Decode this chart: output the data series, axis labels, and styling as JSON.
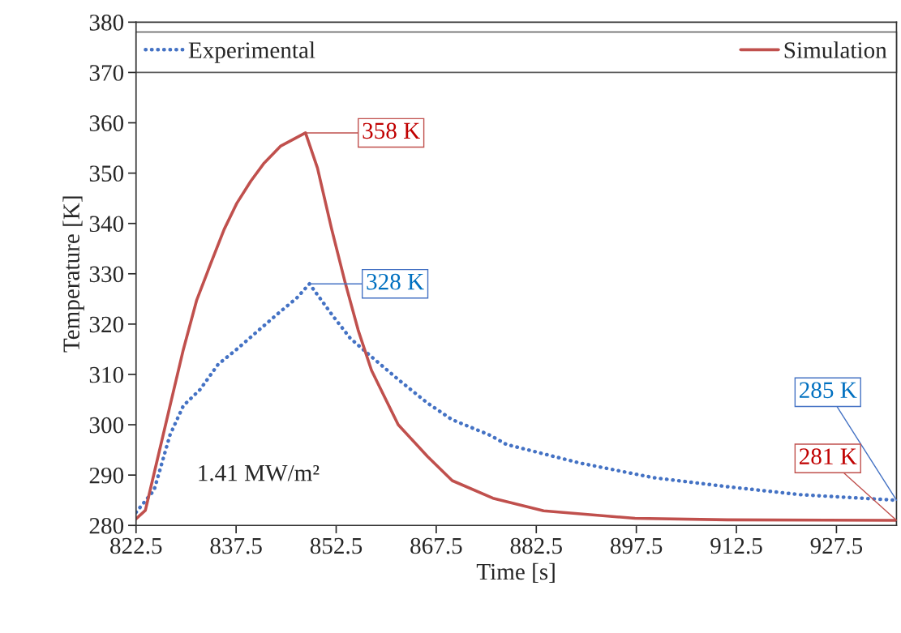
{
  "chart_data": {
    "type": "line",
    "xlabel": "Time [s]",
    "ylabel": "Temperature [K]",
    "xlim": [
      822.5,
      936.5
    ],
    "xticks": [
      822.5,
      837.5,
      852.5,
      867.5,
      882.5,
      897.5,
      912.5,
      927.5
    ],
    "ylim": [
      280,
      380
    ],
    "yticks": [
      280,
      290,
      300,
      310,
      320,
      330,
      340,
      350,
      360,
      370,
      380
    ],
    "grid": false,
    "legend": "top",
    "series": [
      {
        "name": "Experimental",
        "color": "#4472c4",
        "line_style": "dotted",
        "x": [
          822.5,
          825.2,
          827.6,
          829.6,
          832.1,
          834.8,
          837.6,
          840.9,
          843.7,
          846.6,
          848.5,
          851.8,
          854.6,
          857.8,
          861.8,
          866.2,
          869.9,
          875.6,
          878,
          889,
          900,
          911.1,
          922.1,
          936.5
        ],
        "values": [
          282.6,
          287,
          298,
          303.8,
          307,
          312,
          315,
          318.8,
          322,
          325.2,
          328,
          322,
          317.2,
          313.5,
          309,
          304.3,
          301,
          297.9,
          296.1,
          292.4,
          289.5,
          287.7,
          286.1,
          285
        ]
      },
      {
        "name": "Simulation",
        "color": "#c0504d",
        "line_style": "solid",
        "x": [
          822.5,
          823.9,
          825.5,
          827.6,
          829.6,
          831.6,
          833.6,
          835.7,
          837.6,
          839.7,
          841.7,
          844.2,
          847.9,
          849.7,
          851.8,
          853.8,
          855.8,
          857.8,
          861.8,
          866.2,
          869.9,
          876,
          883.6,
          897.3,
          911.1,
          936.5
        ],
        "values": [
          281.3,
          283,
          292,
          303.8,
          315,
          324.8,
          331.7,
          338.8,
          344,
          348.4,
          352,
          355.4,
          358,
          351,
          339,
          328.5,
          318.8,
          310.8,
          300,
          293.7,
          288.9,
          285.4,
          282.9,
          281.4,
          281.1,
          281
        ]
      }
    ],
    "annotations": [
      {
        "text": "358 K",
        "x": 847.9,
        "y": 358
      },
      {
        "text": "328 K",
        "x": 848.5,
        "y": 328
      },
      {
        "text": "285 K",
        "x": 936.5,
        "y": 285
      },
      {
        "text": "281 K",
        "x": 936.5,
        "y": 281
      },
      "1.41 MW/m²"
    ]
  }
}
